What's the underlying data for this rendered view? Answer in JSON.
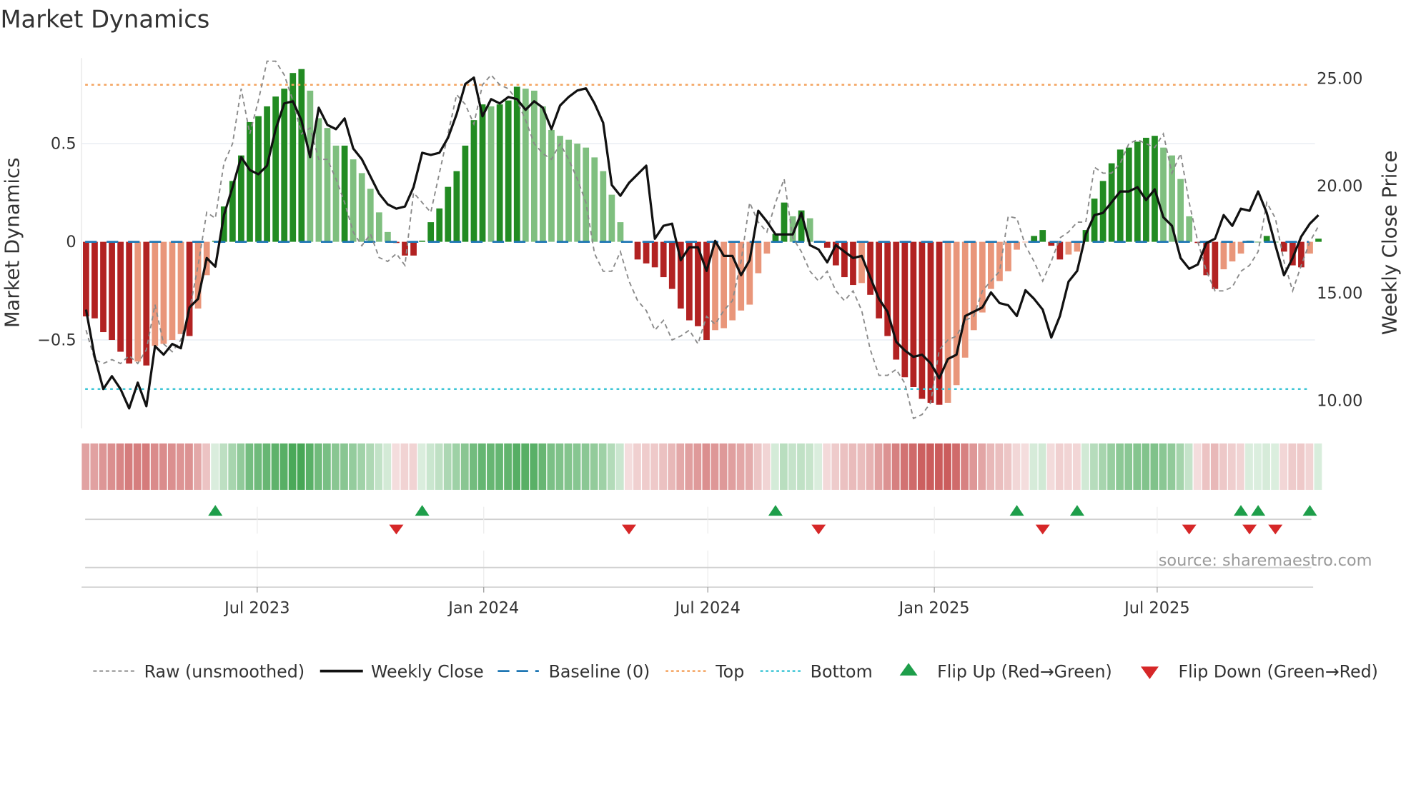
{
  "chart_data": {
    "type": "bar",
    "title": "Market Dynamics",
    "ylabel": "Market Dynamics",
    "ylabel_right": "Weekly Close Price",
    "xlabel": "",
    "ylim": [
      -0.94,
      0.94
    ],
    "ylim_right": [
      8.8,
      25.9
    ],
    "grid": true,
    "legend_placement": "bottom",
    "source": "source: sharemaestro.com",
    "week_start": "2023-02-12",
    "frequency": "weekly",
    "y_ticks": [
      {
        "value": 0.5,
        "label": "0.5"
      },
      {
        "value": 0,
        "label": "0"
      },
      {
        "value": -0.5,
        "label": "−0.5"
      }
    ],
    "y_ticks_right": [
      {
        "value": 25,
        "label": "25.00"
      },
      {
        "value": 20,
        "label": "20.00"
      },
      {
        "value": 15,
        "label": "15.00"
      },
      {
        "value": 10,
        "label": "10.00"
      }
    ],
    "x_ticks": [
      {
        "date": "2023-07-01",
        "label": "Jul 2023"
      },
      {
        "date": "2024-01-01",
        "label": "Jan 2024"
      },
      {
        "date": "2024-07-01",
        "label": "Jul 2024"
      },
      {
        "date": "2025-01-01",
        "label": "Jan 2025"
      },
      {
        "date": "2025-07-01",
        "label": "Jul 2025"
      }
    ],
    "top_level": 0.8,
    "bottom_level": -0.75,
    "baseline": 0,
    "colors": {
      "pos_strong": "#228b22",
      "pos_weak": "#7fbf7f",
      "neg_strong": "#b22222",
      "neg_weak": "#e9967a",
      "close": "#111111",
      "raw": "#8a8a8a",
      "baseline": "#1f77b4",
      "top": "#f4a460",
      "bottom": "#3fc6d6",
      "flip_up": "#1e9e4a",
      "flip_down": "#d62728"
    },
    "series": [
      {
        "name": "Market Dynamics",
        "values": [
          -0.38,
          -0.39,
          -0.46,
          -0.5,
          -0.56,
          -0.62,
          -0.61,
          -0.63,
          -0.53,
          -0.52,
          -0.5,
          -0.47,
          -0.48,
          -0.34,
          -0.17,
          0.005,
          0.18,
          0.31,
          0.44,
          0.61,
          0.64,
          0.69,
          0.74,
          0.78,
          0.86,
          0.88,
          0.77,
          0.63,
          0.58,
          0.49,
          0.49,
          0.42,
          0.35,
          0.27,
          0.15,
          0.05,
          -0.006,
          -0.07,
          -0.07,
          0.006,
          0.1,
          0.17,
          0.28,
          0.36,
          0.49,
          0.62,
          0.7,
          0.69,
          0.7,
          0.72,
          0.79,
          0.78,
          0.77,
          0.69,
          0.57,
          0.54,
          0.52,
          0.5,
          0.48,
          0.43,
          0.36,
          0.24,
          0.1,
          -0.003,
          -0.09,
          -0.11,
          -0.13,
          -0.18,
          -0.24,
          -0.34,
          -0.4,
          -0.43,
          -0.5,
          -0.45,
          -0.44,
          -0.4,
          -0.35,
          -0.32,
          -0.16,
          -0.06,
          0.04,
          0.2,
          0.13,
          0.16,
          0.12,
          0.006,
          -0.03,
          -0.12,
          -0.18,
          -0.22,
          -0.21,
          -0.27,
          -0.39,
          -0.48,
          -0.6,
          -0.69,
          -0.74,
          -0.8,
          -0.82,
          -0.83,
          -0.82,
          -0.73,
          -0.59,
          -0.45,
          -0.36,
          -0.24,
          -0.2,
          -0.15,
          -0.04,
          -0.002,
          0.03,
          0.06,
          -0.02,
          -0.09,
          -0.065,
          -0.05,
          0.06,
          0.22,
          0.31,
          0.4,
          0.47,
          0.48,
          0.51,
          0.53,
          0.54,
          0.48,
          0.44,
          0.32,
          0.13,
          -0.006,
          -0.17,
          -0.24,
          -0.14,
          -0.1,
          -0.06,
          0.006,
          0.0,
          0.03,
          0.0,
          -0.05,
          -0.12,
          -0.13,
          -0.06,
          0.016
        ]
      },
      {
        "name": "Raw (unsmoothed)",
        "values": [
          -0.45,
          -0.6,
          -0.62,
          -0.6,
          -0.62,
          -0.58,
          -0.62,
          -0.55,
          -0.32,
          -0.52,
          -0.56,
          -0.5,
          -0.35,
          -0.12,
          0.15,
          0.12,
          0.4,
          0.5,
          0.78,
          0.55,
          0.72,
          0.92,
          0.92,
          0.85,
          0.72,
          0.55,
          0.58,
          0.42,
          0.42,
          0.32,
          0.2,
          0.05,
          -0.02,
          0.04,
          -0.08,
          -0.1,
          -0.06,
          -0.12,
          0.25,
          0.2,
          0.15,
          0.35,
          0.55,
          0.75,
          0.7,
          0.6,
          0.8,
          0.85,
          0.8,
          0.78,
          0.72,
          0.62,
          0.5,
          0.45,
          0.42,
          0.5,
          0.42,
          0.32,
          0.2,
          -0.06,
          -0.15,
          -0.15,
          -0.05,
          -0.2,
          -0.3,
          -0.35,
          -0.45,
          -0.4,
          -0.5,
          -0.48,
          -0.45,
          -0.52,
          -0.38,
          -0.42,
          -0.35,
          -0.3,
          -0.1,
          0.2,
          0.1,
          0.05,
          0.2,
          0.32,
          0.02,
          -0.05,
          -0.15,
          -0.2,
          -0.15,
          -0.25,
          -0.3,
          -0.25,
          -0.35,
          -0.55,
          -0.68,
          -0.68,
          -0.65,
          -0.72,
          -0.9,
          -0.88,
          -0.82,
          -0.55,
          -0.5,
          -0.48,
          -0.4,
          -0.38,
          -0.25,
          -0.2,
          -0.15,
          0.13,
          0.12,
          -0.02,
          -0.1,
          -0.2,
          -0.1,
          0.02,
          0.05,
          0.1,
          0.1,
          0.38,
          0.35,
          0.35,
          0.4,
          0.5,
          0.52,
          0.5,
          0.48,
          0.55,
          0.35,
          0.45,
          0.2,
          0.0,
          -0.15,
          -0.25,
          -0.25,
          -0.23,
          -0.15,
          -0.12,
          -0.05,
          0.2,
          0.12,
          -0.1,
          -0.25,
          -0.12,
          0.0,
          0.08
        ]
      },
      {
        "name": "Weekly Close",
        "axis": "right",
        "values": [
          14.2,
          12.0,
          10.5,
          11.1,
          10.5,
          9.6,
          10.8,
          9.7,
          12.5,
          12.1,
          12.6,
          12.4,
          14.3,
          14.7,
          16.6,
          16.2,
          18.6,
          19.9,
          21.3,
          20.7,
          20.5,
          20.9,
          22.6,
          23.8,
          23.9,
          23.0,
          21.3,
          23.6,
          22.8,
          22.6,
          23.1,
          21.7,
          21.2,
          20.4,
          19.6,
          19.1,
          18.9,
          19.0,
          19.9,
          21.5,
          21.4,
          21.5,
          22.2,
          23.3,
          24.7,
          25.0,
          23.2,
          24.0,
          23.8,
          24.1,
          24.0,
          23.5,
          23.9,
          23.6,
          22.6,
          23.7,
          24.1,
          24.4,
          24.5,
          23.8,
          22.9,
          20.0,
          19.5,
          20.1,
          20.5,
          20.9,
          17.5,
          18.1,
          18.2,
          16.5,
          17.1,
          17.1,
          16.0,
          17.4,
          16.7,
          16.7,
          15.8,
          16.5,
          18.8,
          18.3,
          17.7,
          17.7,
          17.7,
          18.7,
          17.2,
          17.0,
          16.4,
          17.2,
          16.9,
          16.6,
          16.7,
          15.7,
          14.7,
          14.1,
          12.7,
          12.3,
          12.0,
          12.1,
          11.7,
          11.0,
          11.9,
          12.1,
          13.9,
          14.1,
          14.3,
          15.0,
          14.5,
          14.4,
          13.9,
          15.1,
          14.7,
          14.2,
          12.9,
          13.9,
          15.5,
          16.0,
          17.7,
          18.6,
          18.7,
          19.2,
          19.7,
          19.7,
          19.9,
          19.3,
          19.8,
          18.5,
          18.1,
          16.6,
          16.1,
          16.3,
          17.3,
          17.5,
          18.6,
          18.1,
          18.9,
          18.8,
          19.7,
          18.7,
          17.2,
          15.8,
          16.6,
          17.6,
          18.2,
          18.6
        ]
      }
    ],
    "flips_up": [
      "2023-05-28",
      "2023-11-12",
      "2024-08-25",
      "2025-03-09",
      "2025-04-27",
      "2025-09-07",
      "2025-09-21",
      "2025-11-02"
    ],
    "flips_down": [
      "2023-10-22",
      "2024-04-28",
      "2024-09-29",
      "2025-03-30",
      "2025-07-27",
      "2025-09-14",
      "2025-10-05"
    ],
    "legend": [
      {
        "key": "raw",
        "label": "Raw (unsmoothed)"
      },
      {
        "key": "close",
        "label": "Weekly Close"
      },
      {
        "key": "baseline",
        "label": "Baseline (0)"
      },
      {
        "key": "top",
        "label": "Top"
      },
      {
        "key": "bottom",
        "label": "Bottom"
      },
      {
        "key": "flip_up",
        "label": "Flip Up (Red→Green)"
      },
      {
        "key": "flip_down",
        "label": "Flip Down (Green→Red)"
      }
    ]
  }
}
